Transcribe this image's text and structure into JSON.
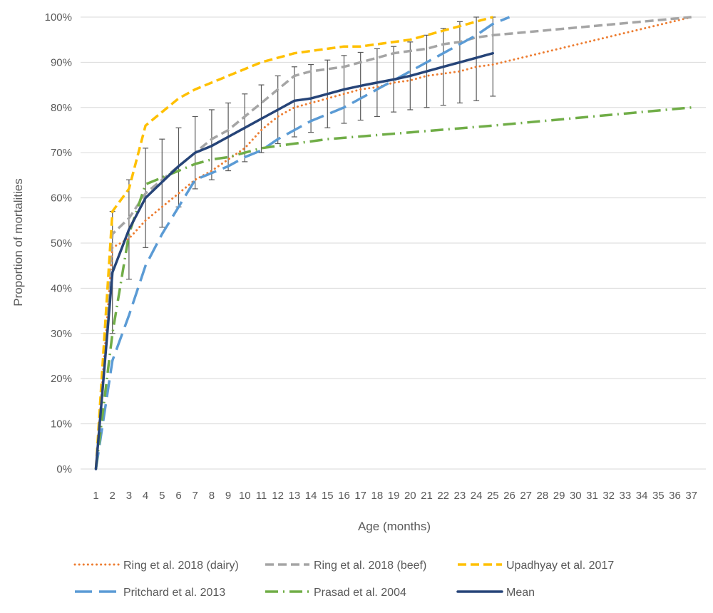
{
  "chart_data": {
    "type": "line",
    "title": "",
    "xlabel": "Age (months)",
    "ylabel": "Proportion of mortalities",
    "x": [
      1,
      2,
      3,
      4,
      5,
      6,
      7,
      8,
      9,
      10,
      11,
      12,
      13,
      14,
      15,
      16,
      17,
      18,
      19,
      20,
      21,
      22,
      23,
      24,
      25,
      26,
      27,
      28,
      29,
      30,
      31,
      32,
      33,
      34,
      35,
      36,
      37
    ],
    "ylim": [
      0,
      1
    ],
    "yticks": [
      0,
      0.1,
      0.2,
      0.3,
      0.4,
      0.5,
      0.6,
      0.7,
      0.8,
      0.9,
      1.0
    ],
    "ytick_labels": [
      "0%",
      "10%",
      "20%",
      "30%",
      "40%",
      "50%",
      "60%",
      "70%",
      "80%",
      "90%",
      "100%"
    ],
    "grid": "horizontal",
    "legend_position": "bottom",
    "series": [
      {
        "name": "Ring et al. 2018 (dairy)",
        "color": "#ED7D31",
        "style": "dotted",
        "points": [
          [
            1,
            0
          ],
          [
            2,
            0.49
          ],
          [
            3,
            0.51
          ],
          [
            4,
            0.55
          ],
          [
            5,
            0.58
          ],
          [
            6,
            0.61
          ],
          [
            7,
            0.64
          ],
          [
            8,
            0.66
          ],
          [
            9,
            0.685
          ],
          [
            10,
            0.71
          ],
          [
            11,
            0.75
          ],
          [
            12,
            0.78
          ],
          [
            13,
            0.8
          ],
          [
            14,
            0.81
          ],
          [
            15,
            0.82
          ],
          [
            16,
            0.83
          ],
          [
            17,
            0.84
          ],
          [
            18,
            0.845
          ],
          [
            19,
            0.855
          ],
          [
            20,
            0.86
          ],
          [
            21,
            0.87
          ],
          [
            22,
            0.875
          ],
          [
            23,
            0.88
          ],
          [
            24,
            0.89
          ],
          [
            25,
            0.895
          ],
          [
            37,
            1.0
          ]
        ]
      },
      {
        "name": "Ring et al. 2018 (beef)",
        "color": "#A5A5A5",
        "style": "dashed",
        "points": [
          [
            1,
            0
          ],
          [
            2,
            0.52
          ],
          [
            3,
            0.555
          ],
          [
            4,
            0.61
          ],
          [
            5,
            0.64
          ],
          [
            6,
            0.67
          ],
          [
            7,
            0.7
          ],
          [
            8,
            0.73
          ],
          [
            9,
            0.75
          ],
          [
            10,
            0.78
          ],
          [
            11,
            0.81
          ],
          [
            12,
            0.84
          ],
          [
            13,
            0.87
          ],
          [
            14,
            0.88
          ],
          [
            15,
            0.885
          ],
          [
            16,
            0.89
          ],
          [
            17,
            0.9
          ],
          [
            18,
            0.91
          ],
          [
            19,
            0.92
          ],
          [
            20,
            0.925
          ],
          [
            21,
            0.93
          ],
          [
            22,
            0.94
          ],
          [
            23,
            0.945
          ],
          [
            24,
            0.955
          ],
          [
            25,
            0.96
          ],
          [
            37,
            1.0
          ]
        ]
      },
      {
        "name": "Upadhyay et al. 2017",
        "color": "#FFC000",
        "style": "dashed",
        "points": [
          [
            1,
            0
          ],
          [
            2,
            0.57
          ],
          [
            3,
            0.62
          ],
          [
            4,
            0.76
          ],
          [
            5,
            0.79
          ],
          [
            6,
            0.82
          ],
          [
            7,
            0.84
          ],
          [
            8,
            0.855
          ],
          [
            9,
            0.87
          ],
          [
            10,
            0.885
          ],
          [
            11,
            0.9
          ],
          [
            12,
            0.91
          ],
          [
            13,
            0.92
          ],
          [
            14,
            0.925
          ],
          [
            15,
            0.93
          ],
          [
            16,
            0.935
          ],
          [
            17,
            0.935
          ],
          [
            18,
            0.94
          ],
          [
            19,
            0.945
          ],
          [
            20,
            0.95
          ],
          [
            21,
            0.96
          ],
          [
            22,
            0.97
          ],
          [
            23,
            0.98
          ],
          [
            24,
            0.99
          ],
          [
            25,
            1.0
          ]
        ]
      },
      {
        "name": "Pritchard et al. 2013",
        "color": "#5B9BD5",
        "style": "longdash",
        "points": [
          [
            1,
            0
          ],
          [
            2,
            0.24
          ],
          [
            3,
            0.34
          ],
          [
            4,
            0.45
          ],
          [
            5,
            0.52
          ],
          [
            6,
            0.58
          ],
          [
            7,
            0.64
          ],
          [
            8,
            0.655
          ],
          [
            9,
            0.67
          ],
          [
            10,
            0.69
          ],
          [
            11,
            0.705
          ],
          [
            12,
            0.73
          ],
          [
            13,
            0.75
          ],
          [
            14,
            0.77
          ],
          [
            15,
            0.785
          ],
          [
            16,
            0.8
          ],
          [
            17,
            0.82
          ],
          [
            18,
            0.84
          ],
          [
            19,
            0.86
          ],
          [
            20,
            0.88
          ],
          [
            21,
            0.9
          ],
          [
            22,
            0.92
          ],
          [
            23,
            0.94
          ],
          [
            24,
            0.96
          ],
          [
            25,
            0.985
          ],
          [
            26,
            1.0
          ]
        ]
      },
      {
        "name": "Prasad et al. 2004",
        "color": "#70AD47",
        "style": "dashdot",
        "points": [
          [
            1,
            0
          ],
          [
            2,
            0.3
          ],
          [
            3,
            0.52
          ],
          [
            4,
            0.63
          ],
          [
            5,
            0.645
          ],
          [
            6,
            0.66
          ],
          [
            7,
            0.675
          ],
          [
            8,
            0.685
          ],
          [
            9,
            0.69
          ],
          [
            10,
            0.7
          ],
          [
            11,
            0.71
          ],
          [
            12,
            0.715
          ],
          [
            13,
            0.72
          ],
          [
            14,
            0.725
          ],
          [
            15,
            0.73
          ],
          [
            20,
            0.745
          ],
          [
            25,
            0.76
          ],
          [
            37,
            0.8
          ]
        ]
      },
      {
        "name": "Mean",
        "color": "#264478",
        "style": "solid",
        "points": [
          [
            1,
            0
          ],
          [
            2,
            0.435
          ],
          [
            3,
            0.53
          ],
          [
            4,
            0.6
          ],
          [
            5,
            0.635
          ],
          [
            6,
            0.67
          ],
          [
            7,
            0.7
          ],
          [
            8,
            0.715
          ],
          [
            9,
            0.735
          ],
          [
            10,
            0.755
          ],
          [
            11,
            0.775
          ],
          [
            12,
            0.795
          ],
          [
            13,
            0.815
          ],
          [
            14,
            0.82
          ],
          [
            15,
            0.83
          ],
          [
            16,
            0.84
          ],
          [
            17,
            0.848
          ],
          [
            18,
            0.855
          ],
          [
            19,
            0.862
          ],
          [
            20,
            0.87
          ],
          [
            21,
            0.88
          ],
          [
            22,
            0.89
          ],
          [
            23,
            0.9
          ],
          [
            24,
            0.91
          ],
          [
            25,
            0.92
          ]
        ]
      }
    ],
    "error_bars": {
      "series": "Mean",
      "color": "#595959",
      "points": [
        [
          2,
          0.3,
          0.57
        ],
        [
          3,
          0.42,
          0.64
        ],
        [
          4,
          0.49,
          0.71
        ],
        [
          5,
          0.535,
          0.73
        ],
        [
          6,
          0.58,
          0.755
        ],
        [
          7,
          0.62,
          0.78
        ],
        [
          8,
          0.64,
          0.795
        ],
        [
          9,
          0.66,
          0.81
        ],
        [
          10,
          0.68,
          0.83
        ],
        [
          11,
          0.7,
          0.85
        ],
        [
          12,
          0.72,
          0.87
        ],
        [
          13,
          0.735,
          0.89
        ],
        [
          14,
          0.745,
          0.895
        ],
        [
          15,
          0.755,
          0.905
        ],
        [
          16,
          0.765,
          0.915
        ],
        [
          17,
          0.772,
          0.922
        ],
        [
          18,
          0.78,
          0.93
        ],
        [
          19,
          0.79,
          0.935
        ],
        [
          20,
          0.795,
          0.945
        ],
        [
          21,
          0.8,
          0.96
        ],
        [
          22,
          0.805,
          0.975
        ],
        [
          23,
          0.81,
          0.99
        ],
        [
          24,
          0.815,
          1.0
        ],
        [
          25,
          0.825,
          1.0
        ]
      ]
    }
  }
}
